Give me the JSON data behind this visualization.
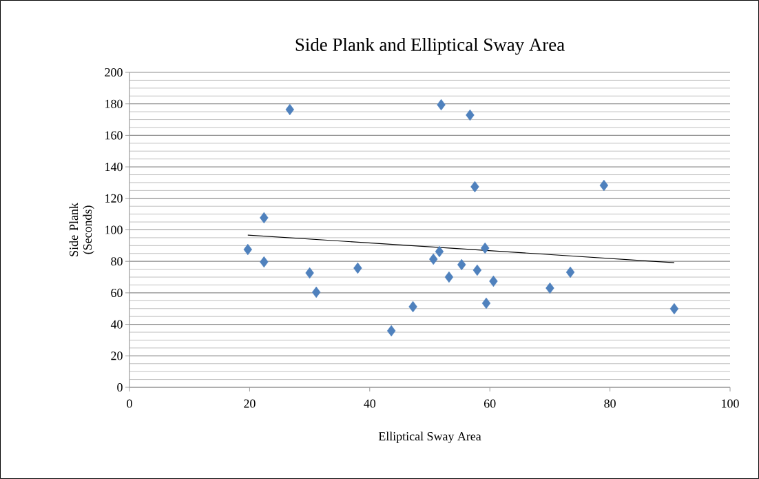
{
  "chart_data": {
    "type": "scatter",
    "title": "Side Plank and Elliptical Sway Area",
    "xlabel": "Elliptical Sway Area",
    "ylabel": "Side Plank (Seconds)",
    "xlim": [
      0,
      100
    ],
    "xticks": [
      0,
      20,
      40,
      60,
      80,
      100
    ],
    "ylim": [
      0,
      200
    ],
    "yticks": [
      0,
      20,
      40,
      60,
      80,
      100,
      120,
      140,
      160,
      180,
      200
    ],
    "grid": "y",
    "marker": "diamond",
    "series": [
      {
        "color": "#4f81bd",
        "x": [
          19.7,
          22.4,
          22.4,
          26.7,
          30.0,
          31.1,
          38.0,
          43.6,
          47.2,
          51.9,
          50.6,
          51.6,
          53.2,
          55.3,
          56.7,
          57.5,
          57.9,
          59.2,
          59.4,
          60.6,
          70.0,
          73.4,
          79.0,
          90.7
        ],
        "values": [
          87.5,
          107.7,
          79.6,
          176.4,
          72.6,
          60.4,
          75.7,
          35.9,
          51.2,
          179.4,
          81.4,
          86.2,
          70.0,
          77.9,
          172.9,
          127.4,
          74.4,
          88.4,
          53.4,
          67.4,
          63.0,
          73.1,
          128.2,
          49.9
        ]
      },
      {
        "type": "line",
        "color": "#000000",
        "marker": "none",
        "line_style": "solid",
        "x": [
          19.7,
          90.7
        ],
        "values": [
          96.7,
          79.2
        ]
      }
    ]
  }
}
